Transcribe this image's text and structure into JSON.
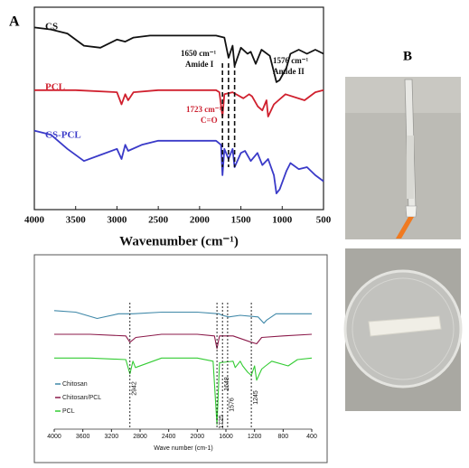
{
  "panel_labels": [
    "A",
    "B"
  ],
  "chart_data": [
    {
      "type": "line",
      "xlabel": "Wavenumber (cm⁻¹)",
      "xlim": [
        4000,
        500
      ],
      "ylim": [
        0,
        100
      ],
      "xticks": [
        4000,
        3500,
        3000,
        2500,
        2000,
        1500,
        1000,
        500
      ],
      "markers": [
        1723,
        1650,
        1576
      ],
      "annotations": [
        {
          "text": "1650 cm⁻¹"
        },
        {
          "text": "Amide I"
        },
        {
          "text": "1576 cm⁻¹"
        },
        {
          "text": "Amide II"
        },
        {
          "text": "1723 cm⁻¹",
          "color": "#cc1f2f"
        },
        {
          "text": "C=O",
          "color": "#cc1f2f"
        }
      ],
      "series": [
        {
          "name": "CS",
          "color": "#111111",
          "x": [
            4000,
            3800,
            3600,
            3400,
            3200,
            3000,
            2900,
            2800,
            2600,
            2400,
            2200,
            2000,
            1800,
            1700,
            1650,
            1600,
            1576,
            1500,
            1420,
            1380,
            1320,
            1250,
            1150,
            1100,
            1070,
            1030,
            950,
            900,
            800,
            700,
            600,
            500
          ],
          "values": [
            90,
            89,
            87,
            81,
            80,
            84,
            83,
            85,
            86,
            86,
            86,
            86,
            86,
            85,
            75,
            81,
            71,
            80,
            77,
            78,
            72,
            79,
            76,
            68,
            63,
            64,
            70,
            77,
            79,
            77,
            79,
            77
          ]
        },
        {
          "name": "PCL",
          "color": "#d0202e",
          "x": [
            4000,
            3500,
            3000,
            2945,
            2900,
            2865,
            2800,
            2500,
            2000,
            1800,
            1760,
            1723,
            1700,
            1600,
            1470,
            1400,
            1365,
            1295,
            1240,
            1190,
            1170,
            1100,
            1045,
            960,
            730,
            600,
            500
          ],
          "values": [
            59,
            59,
            58,
            52,
            57,
            54,
            58,
            59,
            59,
            59,
            58,
            46,
            57,
            58,
            55,
            57,
            56,
            51,
            49,
            54,
            46,
            52,
            54,
            57,
            54,
            58,
            59
          ]
        },
        {
          "name": "CS-PCL",
          "color": "#3a3ac8",
          "x": [
            4000,
            3800,
            3600,
            3400,
            3200,
            3000,
            2945,
            2900,
            2865,
            2700,
            2500,
            2000,
            1800,
            1740,
            1723,
            1700,
            1650,
            1600,
            1576,
            1500,
            1450,
            1380,
            1300,
            1240,
            1170,
            1100,
            1070,
            1030,
            950,
            900,
            800,
            700,
            600,
            500
          ],
          "values": [
            39,
            37,
            30,
            24,
            27,
            30,
            25,
            32,
            29,
            32,
            34,
            34,
            34,
            32,
            17,
            30,
            25,
            30,
            21,
            28,
            29,
            24,
            28,
            22,
            25,
            17,
            8,
            10,
            19,
            23,
            20,
            21,
            17,
            14
          ]
        }
      ]
    },
    {
      "type": "line",
      "xlabel": "Wave number (cm-1)",
      "xlim": [
        4000,
        400
      ],
      "ylim": [
        0,
        100
      ],
      "xticks": [
        4000,
        3600,
        3200,
        2800,
        2400,
        2000,
        1600,
        1200,
        800,
        400
      ],
      "markers": [
        2942,
        1725,
        1648,
        1576,
        1245
      ],
      "series": [
        {
          "name": "Chitosan",
          "color": "#3f88a8",
          "x": [
            4000,
            3700,
            3400,
            3100,
            2900,
            2500,
            2000,
            1700,
            1650,
            1560,
            1400,
            1150,
            1070,
            1030,
            900,
            700,
            400
          ],
          "values": [
            75,
            74,
            70,
            73,
            73,
            74,
            74,
            73,
            72,
            71,
            72,
            71,
            67,
            69,
            73,
            73,
            73
          ]
        },
        {
          "name": "Chitosan/PCL",
          "color": "#8b1a4a",
          "x": [
            4000,
            3500,
            3000,
            2942,
            2860,
            2500,
            2000,
            1760,
            1725,
            1690,
            1500,
            1245,
            1170,
            1100,
            800,
            400
          ],
          "values": [
            60,
            60,
            59,
            55,
            58,
            60,
            60,
            59,
            51,
            59,
            59,
            55,
            54,
            58,
            59,
            60
          ]
        },
        {
          "name": "PCL",
          "color": "#33cc33",
          "x": [
            4000,
            3500,
            3000,
            2942,
            2900,
            2865,
            2500,
            2000,
            1780,
            1725,
            1690,
            1500,
            1470,
            1400,
            1365,
            1295,
            1245,
            1200,
            1170,
            1100,
            1045,
            960,
            730,
            600,
            400
          ],
          "values": [
            45,
            45,
            44,
            35,
            43,
            39,
            45,
            45,
            43,
            3,
            42,
            43,
            39,
            43,
            40,
            36,
            34,
            40,
            31,
            38,
            40,
            43,
            40,
            44,
            45
          ]
        }
      ]
    }
  ]
}
